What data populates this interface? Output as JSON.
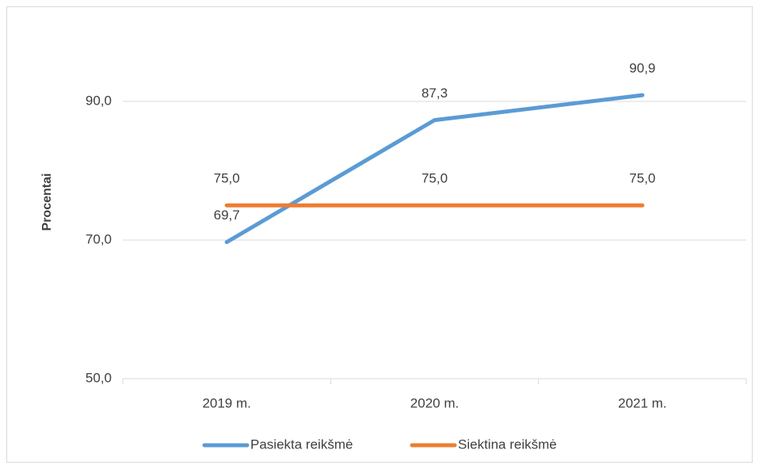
{
  "chart_data": {
    "type": "line",
    "y_axis_label": "Procentai",
    "categories": [
      "2019 m.",
      "2020 m.",
      "2021 m."
    ],
    "series": [
      {
        "name": "Pasiekta reikšmė",
        "color": "#5b9bd5",
        "values": [
          69.7,
          87.3,
          90.9
        ],
        "value_labels": [
          "69,7",
          "87,3",
          "90,9"
        ]
      },
      {
        "name": "Siektina reikšmė",
        "color": "#ed7d31",
        "values": [
          75,
          75,
          75
        ],
        "value_labels": [
          "75,0",
          "75,0",
          "75,0"
        ]
      }
    ],
    "ylim": [
      50,
      100
    ],
    "yticks": [
      {
        "value": 50,
        "label": "50,0"
      },
      {
        "value": 70,
        "label": "70,0"
      },
      {
        "value": 90,
        "label": "90,0"
      }
    ],
    "grid": true,
    "legend": "bottom"
  }
}
